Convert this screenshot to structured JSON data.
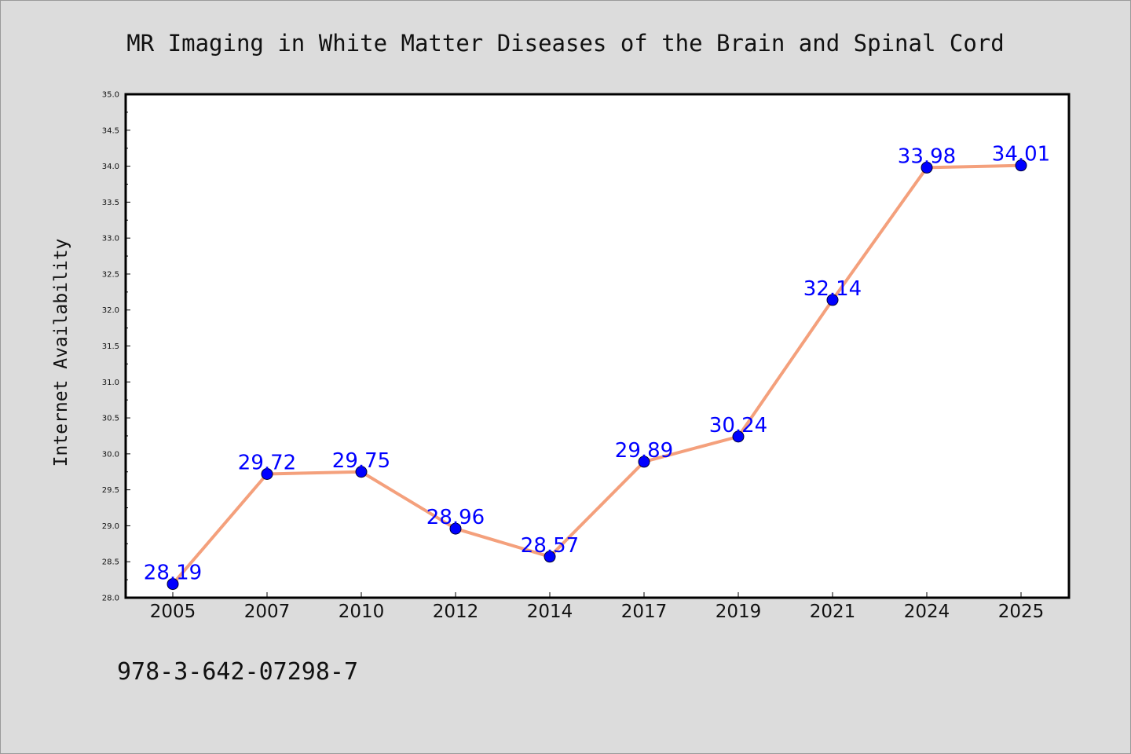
{
  "chart_data": {
    "type": "line",
    "title": "MR Imaging in White Matter Diseases of the Brain and Spinal Cord",
    "xlabel": "",
    "ylabel": "Internet Availability",
    "categories": [
      "2005",
      "2007",
      "2010",
      "2012",
      "2014",
      "2017",
      "2019",
      "2021",
      "2024",
      "2025"
    ],
    "values": [
      28.19,
      29.72,
      29.75,
      28.96,
      28.57,
      29.89,
      30.24,
      32.14,
      33.98,
      34.01
    ],
    "data_labels": [
      "28.19",
      "29.72",
      "29.75",
      "28.96",
      "28.57",
      "29.89",
      "30.24",
      "32.14",
      "33.98",
      "34.01"
    ],
    "ylim": [
      28.0,
      35.0
    ],
    "yticks": [
      "28.0",
      "28.5",
      "29.0",
      "29.5",
      "30.0",
      "30.5",
      "31.0",
      "31.5",
      "32.0",
      "32.5",
      "33.0",
      "33.5",
      "34.0",
      "34.5",
      "35.0"
    ],
    "grid": false,
    "legend": "none",
    "colors": {
      "line": "#f4a07c",
      "marker": "#0000ff",
      "data_label": "#0000ff",
      "background": "#dcdcdc",
      "plot_area": "#ffffff"
    }
  },
  "footer": {
    "isbn": "978-3-642-07298-7"
  }
}
